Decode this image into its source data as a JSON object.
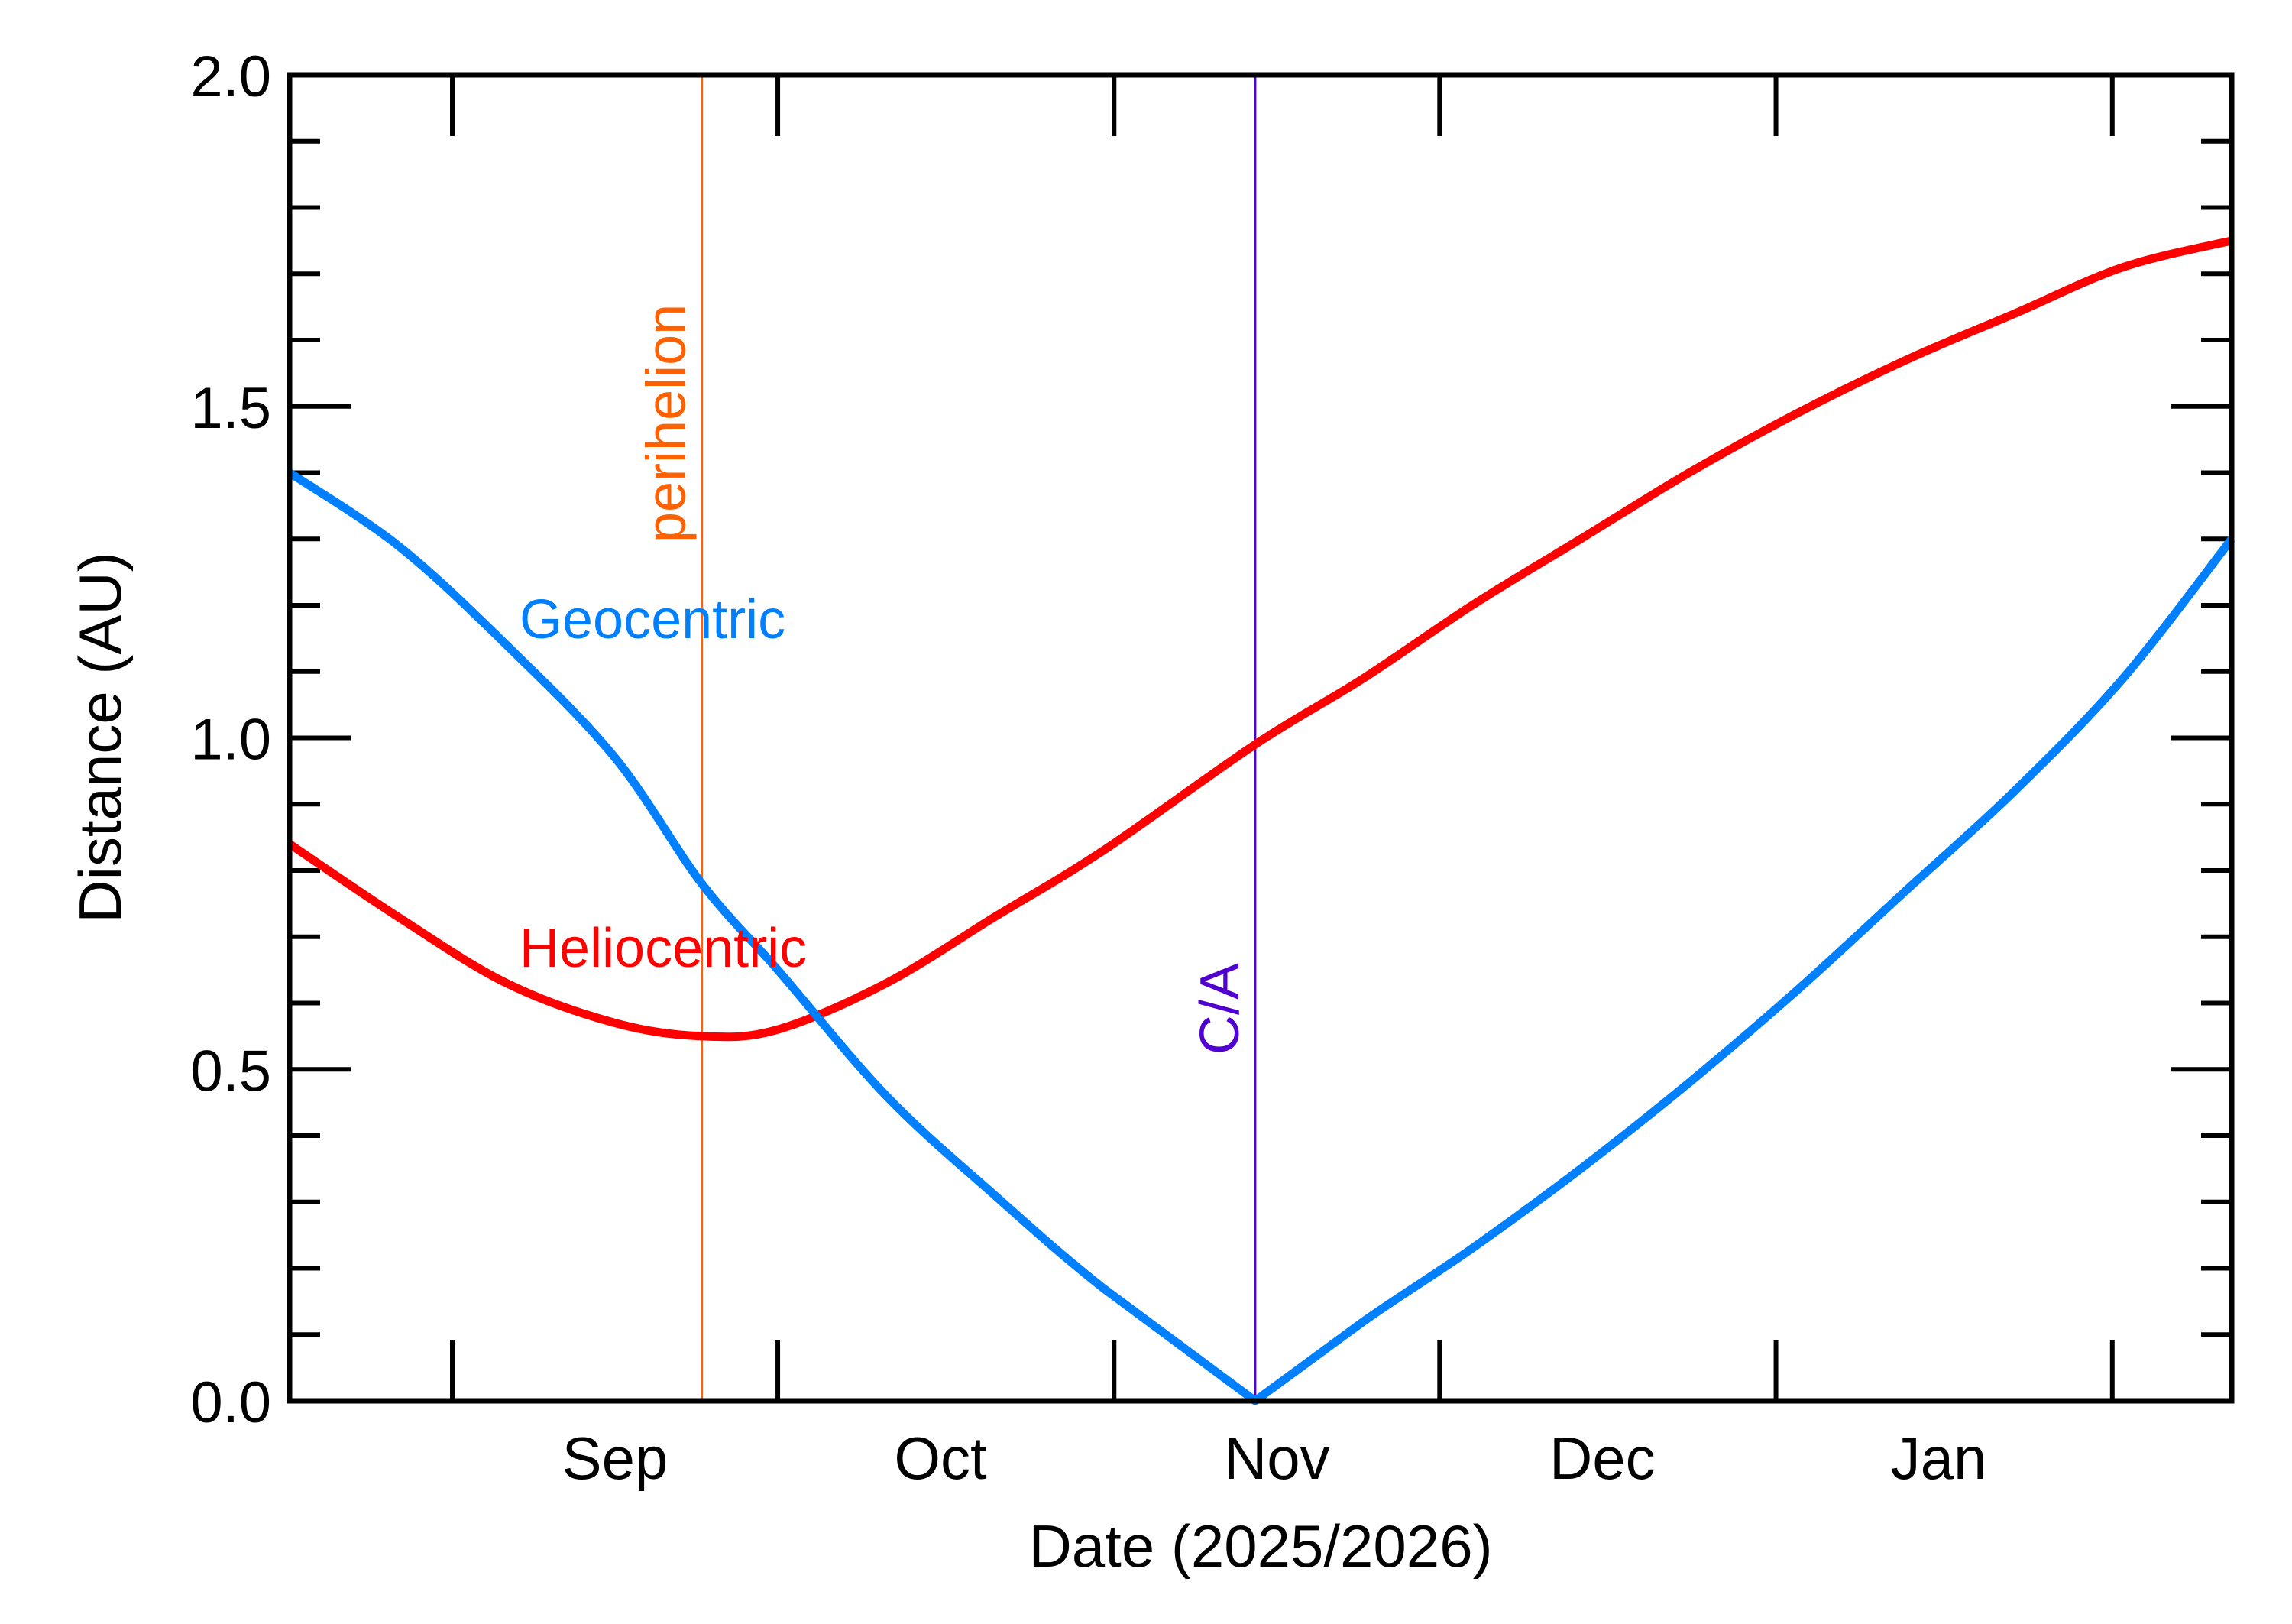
{
  "chart_data": {
    "type": "line",
    "xlabel": "Date (2025/2026)",
    "ylabel": "Distance (AU)",
    "xlim": [
      "2025-08-17",
      "2026-02-12"
    ],
    "ylim": [
      0.0,
      2.0
    ],
    "grid": false,
    "x_major_ticks": [
      "2025-09-01",
      "2025-10-01",
      "2025-11-01",
      "2025-12-01",
      "2026-01-01",
      "2026-02-01"
    ],
    "x_tick_labels": [
      {
        "label": "Sep",
        "date": "2025-09-16"
      },
      {
        "label": "Oct",
        "date": "2025-10-16"
      },
      {
        "label": "Nov",
        "date": "2025-11-16"
      },
      {
        "label": "Dec",
        "date": "2025-12-16"
      },
      {
        "label": "Jan",
        "date": "2026-01-16"
      }
    ],
    "y_tick_labels": [
      "0.0",
      "0.5",
      "1.0",
      "1.5",
      "2.0"
    ],
    "y_minor_step": 0.1,
    "series": [
      {
        "name": "Heliocentric",
        "color": "#ff0000",
        "x": [
          "2025-08-17",
          "2025-08-27",
          "2025-09-06",
          "2025-09-16",
          "2025-09-24",
          "2025-10-01",
          "2025-10-11",
          "2025-10-21",
          "2025-10-31",
          "2025-11-14",
          "2025-11-24",
          "2025-12-04",
          "2025-12-14",
          "2025-12-24",
          "2026-01-03",
          "2026-01-13",
          "2026-01-23",
          "2026-02-02",
          "2026-02-12"
        ],
        "values": [
          0.84,
          0.73,
          0.63,
          0.57,
          0.55,
          0.56,
          0.63,
          0.73,
          0.83,
          0.99,
          1.09,
          1.2,
          1.3,
          1.4,
          1.49,
          1.57,
          1.64,
          1.71,
          1.75
        ]
      },
      {
        "name": "Geocentric",
        "color": "#0080ff",
        "x": [
          "2025-08-17",
          "2025-08-27",
          "2025-09-06",
          "2025-09-16",
          "2025-09-24",
          "2025-10-01",
          "2025-10-11",
          "2025-10-21",
          "2025-10-31",
          "2025-11-14",
          "2025-11-24",
          "2025-12-04",
          "2025-12-14",
          "2025-12-24",
          "2026-01-03",
          "2026-01-13",
          "2026-01-23",
          "2026-02-02",
          "2026-02-12"
        ],
        "values": [
          1.4,
          1.29,
          1.14,
          0.97,
          0.78,
          0.65,
          0.46,
          0.31,
          0.17,
          0.0,
          0.12,
          0.23,
          0.35,
          0.48,
          0.62,
          0.77,
          0.92,
          1.09,
          1.3
        ]
      }
    ],
    "annotations": [
      {
        "label": "perihelion",
        "date": "2025-09-24",
        "color": "#ff6000",
        "type": "vline"
      },
      {
        "label": "C/A",
        "date": "2025-11-14",
        "color": "#5000d0",
        "type": "vline"
      }
    ]
  }
}
